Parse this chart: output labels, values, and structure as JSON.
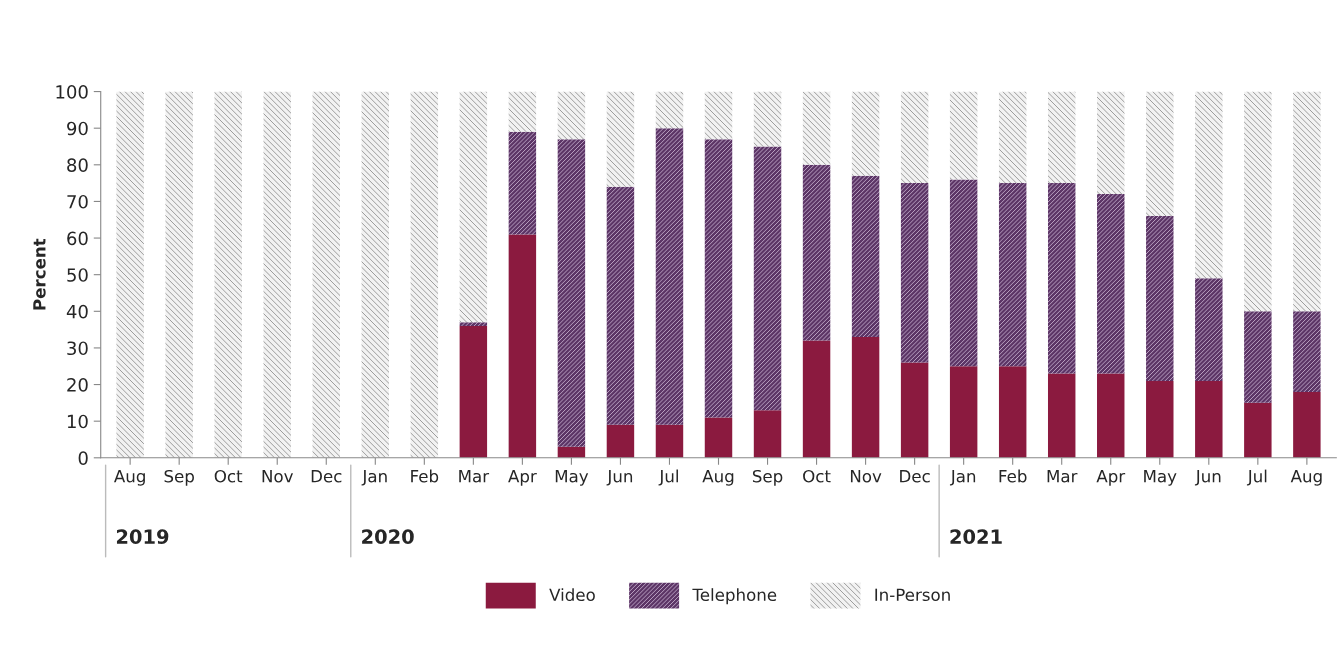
{
  "chart_data": {
    "type": "bar",
    "stacked": true,
    "ylabel": "Percent",
    "categories": [
      "Aug",
      "Sep",
      "Oct",
      "Nov",
      "Dec",
      "Jan",
      "Feb",
      "Mar",
      "Apr",
      "May",
      "Jun",
      "Jul",
      "Aug",
      "Sep",
      "Oct",
      "Nov",
      "Dec",
      "Jan",
      "Feb",
      "Mar",
      "Apr",
      "May",
      "Jun",
      "Jul",
      "Aug"
    ],
    "series": [
      {
        "name": "Video",
        "color": "#8b1a3f",
        "values": [
          0,
          0,
          0,
          0,
          0,
          0,
          0,
          36,
          61,
          3,
          9,
          9,
          11,
          13,
          32,
          33,
          26,
          25,
          25,
          23,
          23,
          21,
          21,
          15,
          18
        ]
      },
      {
        "name": "Telephone",
        "color": "#5c3566",
        "values": [
          0,
          0,
          0,
          0,
          0,
          0,
          0,
          1,
          28,
          84,
          65,
          81,
          76,
          72,
          48,
          44,
          49,
          51,
          50,
          52,
          49,
          45,
          28,
          25,
          22
        ]
      },
      {
        "name": "In-Person",
        "color": "#f2f2f2",
        "values": [
          100,
          100,
          100,
          100,
          100,
          100,
          100,
          63,
          11,
          13,
          26,
          10,
          13,
          15,
          20,
          23,
          25,
          24,
          25,
          25,
          28,
          34,
          51,
          60,
          60
        ]
      }
    ],
    "annotations": [
      "2019",
      "2020",
      "2021"
    ],
    "ylim": [
      0,
      100
    ],
    "yticks": [
      0,
      10,
      20,
      30,
      40,
      50,
      60,
      70,
      80,
      90,
      100
    ],
    "grid": false,
    "legend": "bottom"
  }
}
